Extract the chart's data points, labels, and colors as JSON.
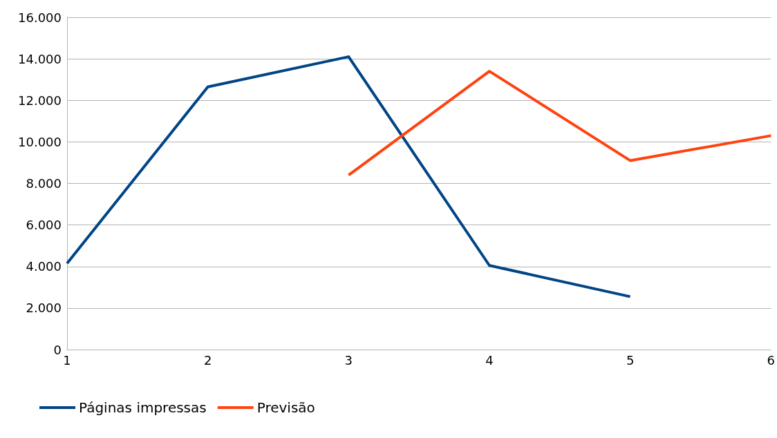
{
  "chart_data": {
    "type": "line",
    "xlim": [
      1,
      6
    ],
    "xticks": [
      1,
      2,
      3,
      4,
      5,
      6
    ],
    "ylim": [
      0,
      16000
    ],
    "yticks": [
      0,
      {
        "value": 2000,
        "label": "2.000"
      },
      {
        "value": 4000,
        "label": "4.000"
      },
      {
        "value": 6000,
        "label": "6.000"
      },
      {
        "value": 8000,
        "label": "8.000"
      },
      {
        "value": 10000,
        "label": "10.000"
      },
      {
        "value": 12000,
        "label": "12.000"
      },
      {
        "value": 14000,
        "label": "14.000"
      },
      {
        "value": 16000,
        "label": "16.000"
      }
    ],
    "grid": "y",
    "legend": "bottom left",
    "marker": "none",
    "line_style": "solid",
    "series": [
      {
        "name": "Páginas impressas",
        "color": "#004586",
        "x": [
          1,
          2,
          3,
          4,
          5
        ],
        "values": [
          4150,
          12650,
          14100,
          4050,
          2550
        ]
      },
      {
        "name": "Previsão",
        "color": "#ff420e",
        "x": [
          3,
          4,
          5,
          6
        ],
        "values": [
          8400,
          13400,
          9100,
          10300
        ]
      }
    ]
  }
}
